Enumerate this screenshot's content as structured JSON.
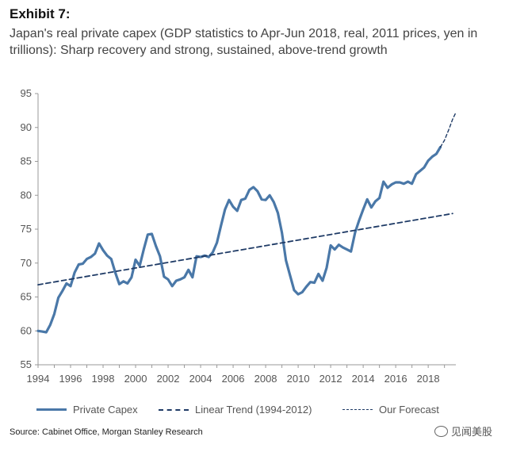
{
  "header": {
    "exhibit": "Exhibit 7:",
    "title": "Japan's real private capex (GDP statistics to Apr-Jun 2018, real, 2011 prices, yen in trillions): Sharp recovery and strong, sustained, above-trend growth"
  },
  "footer": {
    "source": "Source: Cabinet Office, Morgan Stanley Research",
    "watermark": "见闻美股"
  },
  "colors": {
    "capex": "#4a78a8",
    "trend": "#1f3b66",
    "forecast": "#1f3b66",
    "axis": "#999999"
  },
  "chart_data": {
    "type": "line",
    "title": "Japan's real private capex (GDP statistics to Apr-Jun 2018, real, 2011 prices, yen in trillions): Sharp recovery and strong, sustained, above-trend growth",
    "xlabel": "",
    "ylabel": "",
    "xlim": [
      1994,
      2019.7
    ],
    "ylim": [
      55,
      95
    ],
    "x_ticks": [
      "1994",
      "1996",
      "1998",
      "2000",
      "2002",
      "2004",
      "2006",
      "2008",
      "2010",
      "2012",
      "2014",
      "2016",
      "2018"
    ],
    "y_ticks": [
      "55",
      "60",
      "65",
      "70",
      "75",
      "80",
      "85",
      "90",
      "95"
    ],
    "grid": false,
    "legend": "bottom",
    "series": [
      {
        "name": "Private Capex",
        "style": "solid",
        "points": [
          [
            1994.0,
            60.0
          ],
          [
            1994.25,
            59.9
          ],
          [
            1994.5,
            59.8
          ],
          [
            1994.75,
            60.9
          ],
          [
            1995.0,
            62.5
          ],
          [
            1995.25,
            64.9
          ],
          [
            1995.5,
            65.9
          ],
          [
            1995.75,
            67.0
          ],
          [
            1996.0,
            66.6
          ],
          [
            1996.25,
            68.6
          ],
          [
            1996.5,
            69.8
          ],
          [
            1996.75,
            69.9
          ],
          [
            1997.0,
            70.6
          ],
          [
            1997.25,
            70.9
          ],
          [
            1997.5,
            71.4
          ],
          [
            1997.75,
            72.9
          ],
          [
            1998.0,
            71.9
          ],
          [
            1998.25,
            71.1
          ],
          [
            1998.5,
            70.6
          ],
          [
            1998.75,
            68.6
          ],
          [
            1999.0,
            66.9
          ],
          [
            1999.25,
            67.3
          ],
          [
            1999.5,
            67.0
          ],
          [
            1999.75,
            67.9
          ],
          [
            2000.0,
            70.5
          ],
          [
            2000.25,
            69.6
          ],
          [
            2000.5,
            72.0
          ],
          [
            2000.75,
            74.2
          ],
          [
            2001.0,
            74.3
          ],
          [
            2001.25,
            72.5
          ],
          [
            2001.5,
            71.0
          ],
          [
            2001.75,
            68.0
          ],
          [
            2002.0,
            67.6
          ],
          [
            2002.25,
            66.6
          ],
          [
            2002.5,
            67.4
          ],
          [
            2002.75,
            67.6
          ],
          [
            2003.0,
            67.9
          ],
          [
            2003.25,
            69.0
          ],
          [
            2003.5,
            67.9
          ],
          [
            2003.75,
            71.0
          ],
          [
            2004.0,
            70.9
          ],
          [
            2004.25,
            71.1
          ],
          [
            2004.5,
            70.9
          ],
          [
            2004.75,
            71.6
          ],
          [
            2005.0,
            73.0
          ],
          [
            2005.25,
            75.5
          ],
          [
            2005.5,
            77.9
          ],
          [
            2005.75,
            79.3
          ],
          [
            2006.0,
            78.3
          ],
          [
            2006.25,
            77.7
          ],
          [
            2006.5,
            79.3
          ],
          [
            2006.75,
            79.5
          ],
          [
            2007.0,
            80.8
          ],
          [
            2007.25,
            81.2
          ],
          [
            2007.5,
            80.6
          ],
          [
            2007.75,
            79.4
          ],
          [
            2008.0,
            79.3
          ],
          [
            2008.25,
            80.0
          ],
          [
            2008.5,
            79.0
          ],
          [
            2008.75,
            77.4
          ],
          [
            2009.0,
            74.5
          ],
          [
            2009.25,
            70.4
          ],
          [
            2009.5,
            68.2
          ],
          [
            2009.75,
            66.0
          ],
          [
            2010.0,
            65.4
          ],
          [
            2010.25,
            65.7
          ],
          [
            2010.5,
            66.5
          ],
          [
            2010.75,
            67.2
          ],
          [
            2011.0,
            67.1
          ],
          [
            2011.25,
            68.4
          ],
          [
            2011.5,
            67.4
          ],
          [
            2011.75,
            69.3
          ],
          [
            2012.0,
            72.6
          ],
          [
            2012.25,
            72.0
          ],
          [
            2012.5,
            72.7
          ],
          [
            2012.75,
            72.3
          ],
          [
            2013.0,
            72.0
          ],
          [
            2013.25,
            71.7
          ],
          [
            2013.5,
            74.5
          ],
          [
            2013.75,
            76.3
          ],
          [
            2014.0,
            77.9
          ],
          [
            2014.25,
            79.4
          ],
          [
            2014.5,
            78.2
          ],
          [
            2014.75,
            79.1
          ],
          [
            2015.0,
            79.6
          ],
          [
            2015.25,
            82.0
          ],
          [
            2015.5,
            81.1
          ],
          [
            2015.75,
            81.6
          ],
          [
            2016.0,
            81.9
          ],
          [
            2016.25,
            81.9
          ],
          [
            2016.5,
            81.7
          ],
          [
            2016.75,
            82.0
          ],
          [
            2017.0,
            81.7
          ],
          [
            2017.25,
            83.1
          ],
          [
            2017.5,
            83.6
          ],
          [
            2017.75,
            84.1
          ],
          [
            2018.0,
            85.1
          ],
          [
            2018.25,
            85.7
          ],
          [
            2018.5,
            86.1
          ],
          [
            2018.75,
            87.1
          ]
        ]
      },
      {
        "name": "Linear Trend (1994-2012)",
        "style": "dashed",
        "points": [
          [
            1994.0,
            66.8
          ],
          [
            2019.5,
            77.3
          ]
        ]
      },
      {
        "name": "Our Forecast",
        "style": "dashed-fine",
        "points": [
          [
            2018.75,
            87.1
          ],
          [
            2019.0,
            88.1
          ],
          [
            2019.25,
            89.6
          ],
          [
            2019.5,
            91.2
          ],
          [
            2019.7,
            92.2
          ]
        ]
      }
    ]
  }
}
